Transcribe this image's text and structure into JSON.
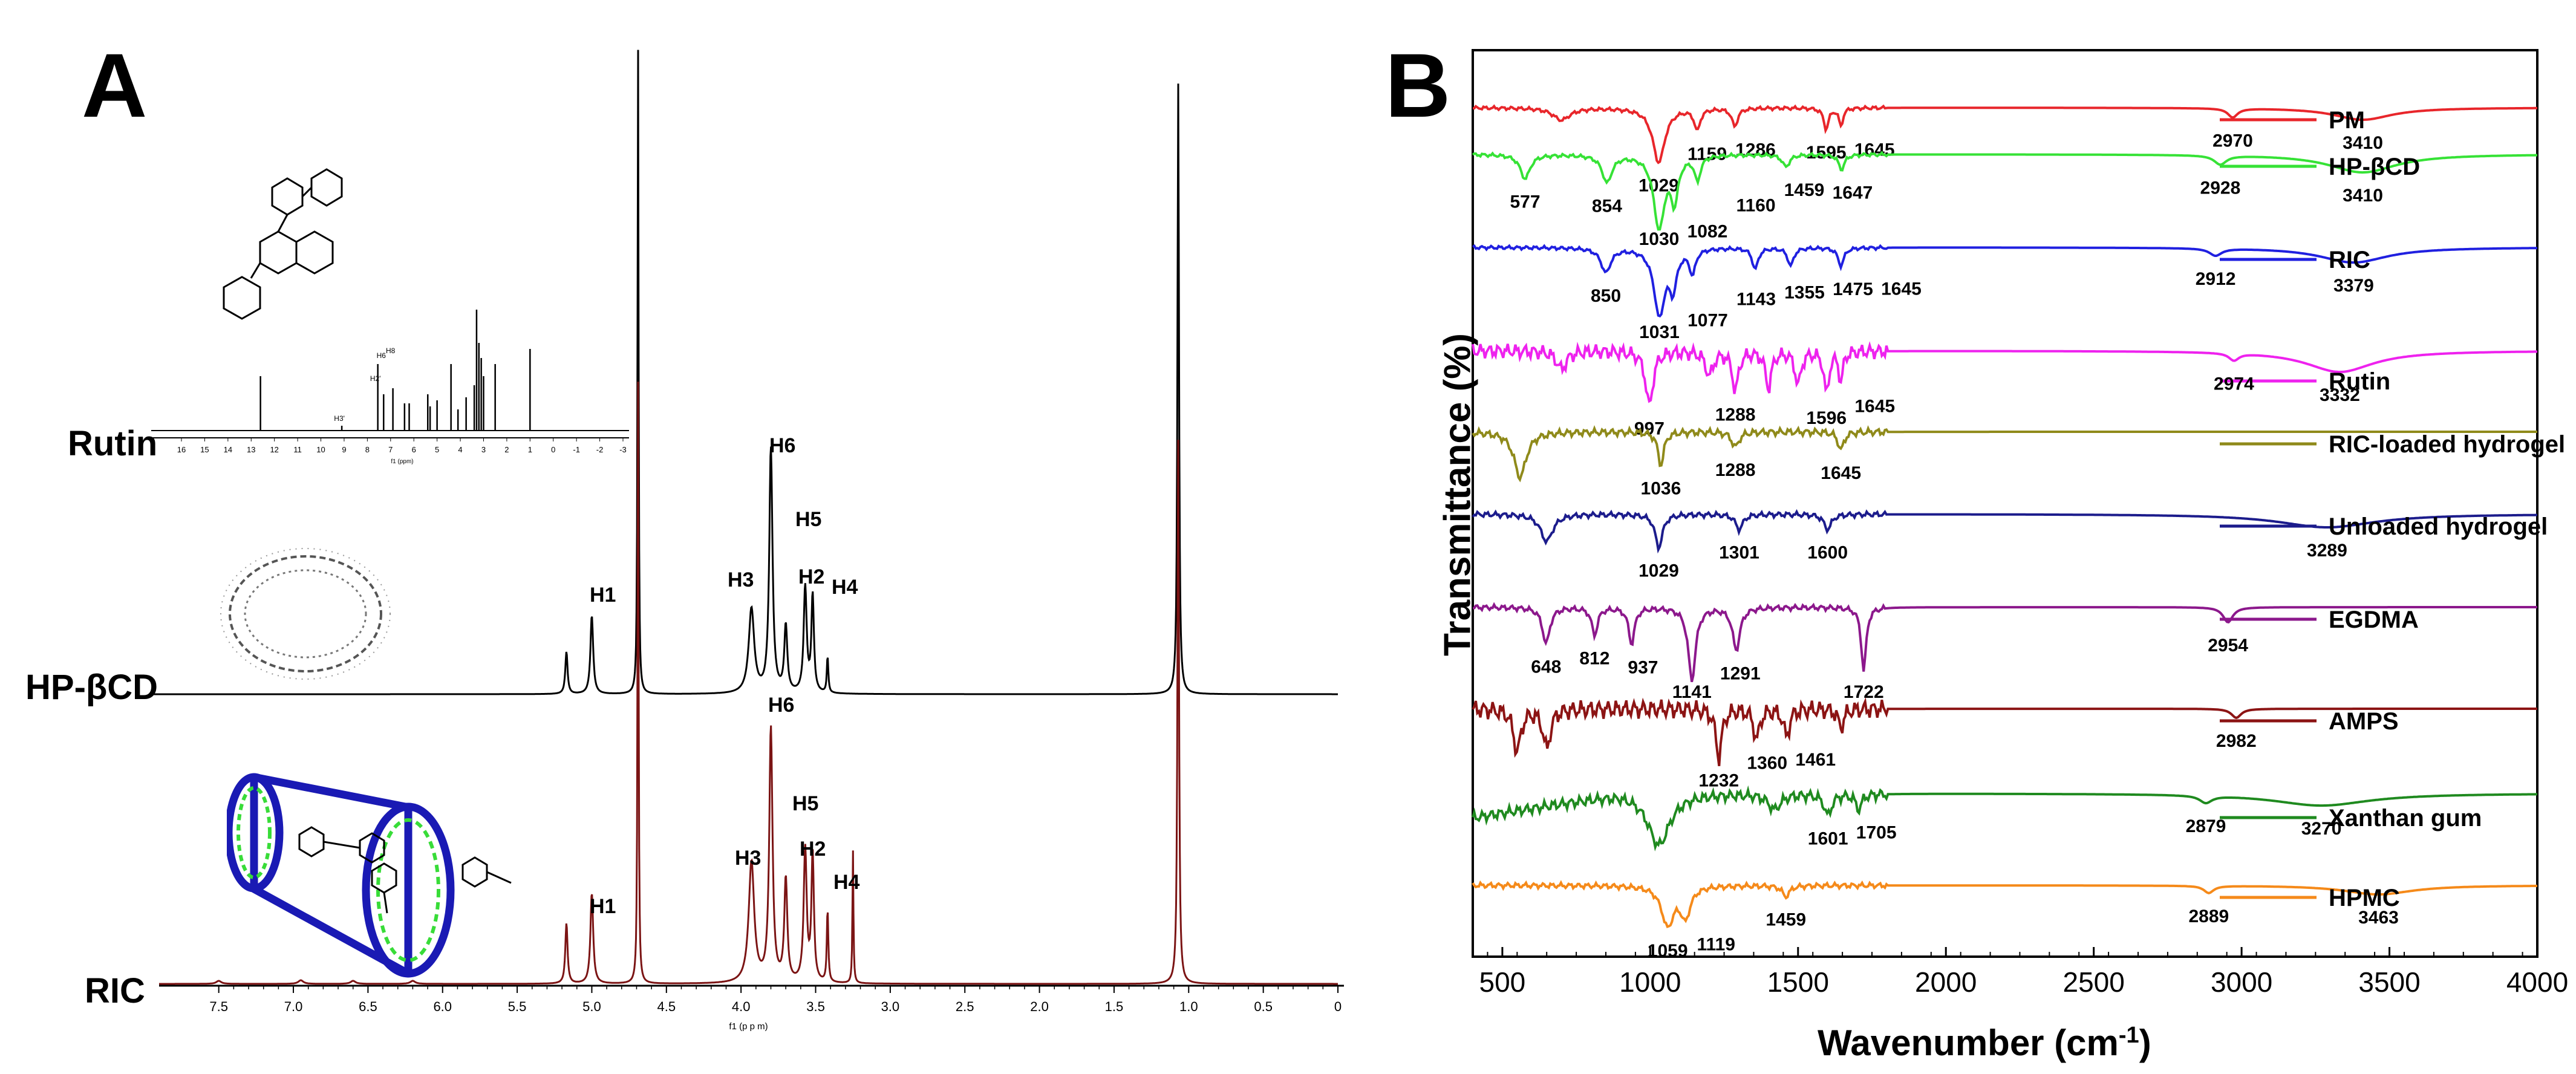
{
  "panels": {
    "a": {
      "letter": "A"
    },
    "b": {
      "letter": "B"
    }
  },
  "chart_data": [
    {
      "type": "line",
      "panel": "A",
      "xlabel": "f1 (p p m)",
      "xlim": [
        7.9,
        0.0
      ],
      "x_ticks": [
        "7.5",
        "7.0",
        "6.5",
        "6.0",
        "5.5",
        "5.0",
        "4.5",
        "4.0",
        "3.5",
        "3.0",
        "2.5",
        "2.0",
        "1.5",
        "1.0",
        "0.5",
        "0"
      ],
      "series": [
        {
          "name": "Rutin",
          "color": "#000000"
        },
        {
          "name": "HP-βCD",
          "color": "#000000"
        },
        {
          "name": "RIC",
          "color": "#7b1414"
        }
      ],
      "hpbcd_peaks": [
        {
          "label": "H1",
          "ppm": 5.0
        },
        {
          "label": "H3",
          "ppm": 3.93
        },
        {
          "label": "H6",
          "ppm": 3.8
        },
        {
          "label": "H5",
          "ppm": 3.7
        },
        {
          "label": "H2",
          "ppm": 3.55
        },
        {
          "label": "H4",
          "ppm": 3.42
        }
      ],
      "ric_peaks": [
        {
          "label": "H1",
          "ppm": 5.0
        },
        {
          "label": "H3",
          "ppm": 3.93
        },
        {
          "label": "H6",
          "ppm": 3.8
        },
        {
          "label": "H5",
          "ppm": 3.7
        },
        {
          "label": "H2",
          "ppm": 3.55
        },
        {
          "label": "H4",
          "ppm": 3.42
        }
      ],
      "inset": {
        "series_name": "Rutin",
        "xlim": [
          16,
          -3
        ],
        "x_ticks": [
          "16",
          "15",
          "14",
          "13",
          "12",
          "11",
          "10",
          "9",
          "8",
          "7",
          "6",
          "5",
          "4",
          "3",
          "2",
          "1",
          "0",
          "-1",
          "-2",
          "-3"
        ],
        "xlabel": "f1 (ppm)",
        "peak_labels": [
          "H3'",
          "H2'",
          "H6",
          "H8"
        ]
      }
    },
    {
      "type": "line",
      "panel": "B",
      "xlabel": "Wavenumber (cm",
      "xlabel_sup": "-1",
      "xlabel_close": ")",
      "ylabel": "Transmittance (%)",
      "xlim": [
        400,
        4000
      ],
      "x_ticks": [
        500,
        1000,
        1500,
        2000,
        2500,
        3000,
        3500,
        4000
      ],
      "series": [
        {
          "name": "PM",
          "color": "#e8262b",
          "band_labels": [
            "1029",
            "1159",
            "1286",
            "1595",
            "1645",
            "2970",
            "3410"
          ]
        },
        {
          "name": "HP-βCD",
          "color": "#36e236",
          "band_labels": [
            "577",
            "854",
            "1030",
            "1082",
            "1160",
            "1459",
            "1647",
            "2928",
            "3410"
          ]
        },
        {
          "name": "RIC",
          "color": "#2020e0",
          "band_labels": [
            "850",
            "1031",
            "1077",
            "1143",
            "1355",
            "1475",
            "1645",
            "2912",
            "3379"
          ]
        },
        {
          "name": "Rutin",
          "color": "#ee22ee",
          "band_labels": [
            "997",
            "1288",
            "1596",
            "1645",
            "2974",
            "3332"
          ]
        },
        {
          "name": "RIC-loaded hydrogel",
          "color": "#8f8a1a",
          "band_labels": [
            "1036",
            "1288",
            "1645"
          ]
        },
        {
          "name": "Unloaded hydrogel",
          "color": "#1c1c8c",
          "band_labels": [
            "1029",
            "1301",
            "1600",
            "3289"
          ]
        },
        {
          "name": "EGDMA",
          "color": "#8c188c",
          "band_labels": [
            "648",
            "812",
            "937",
            "1141",
            "1291",
            "1722",
            "2954"
          ]
        },
        {
          "name": "AMPS",
          "color": "#8c1414",
          "band_labels": [
            "1232",
            "1360",
            "1461",
            "2982"
          ]
        },
        {
          "name": "Xanthan gum",
          "color": "#1f8a1f",
          "band_labels": [
            "1601",
            "1705",
            "2879",
            "3270"
          ]
        },
        {
          "name": "HPMC",
          "color": "#f58a1a",
          "band_labels": [
            "1059",
            "1119",
            "1459",
            "2889",
            "3463"
          ]
        }
      ]
    }
  ]
}
